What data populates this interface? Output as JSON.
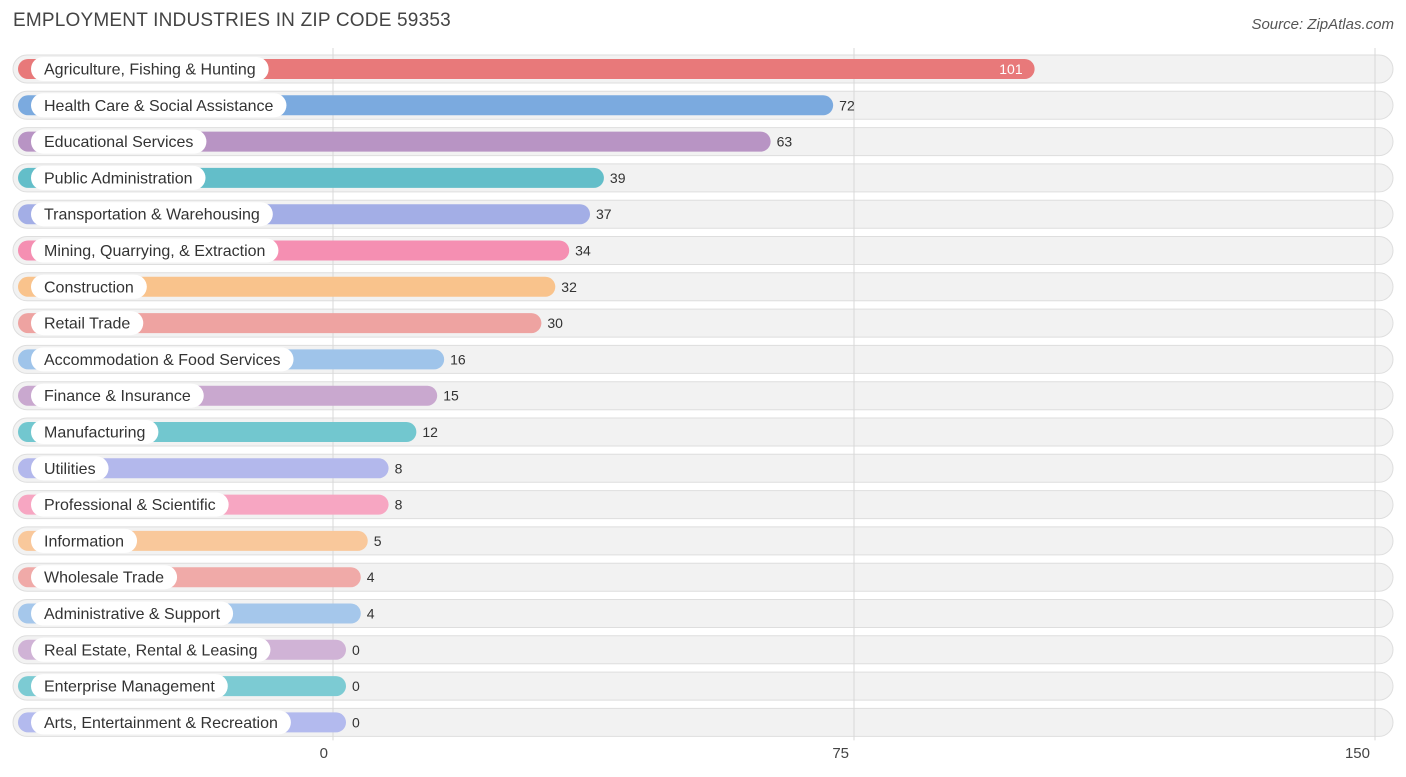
{
  "chart_data": {
    "type": "bar",
    "orientation": "horizontal",
    "title": "EMPLOYMENT INDUSTRIES IN ZIP CODE 59353",
    "source": "Source: ZipAtlas.com",
    "xlim": [
      0,
      150
    ],
    "ticks": [
      0,
      75,
      150
    ],
    "tick_labels": [
      "0",
      "75",
      "150"
    ],
    "grid": true,
    "categories": [
      "Agriculture, Fishing & Hunting",
      "Health Care & Social Assistance",
      "Educational Services",
      "Public Administration",
      "Transportation & Warehousing",
      "Mining, Quarrying, & Extraction",
      "Construction",
      "Retail Trade",
      "Accommodation & Food Services",
      "Finance & Insurance",
      "Manufacturing",
      "Utilities",
      "Professional & Scientific",
      "Information",
      "Wholesale Trade",
      "Administrative & Support",
      "Real Estate, Rental & Leasing",
      "Enterprise Management",
      "Arts, Entertainment & Recreation"
    ],
    "values": [
      101,
      72,
      63,
      39,
      37,
      34,
      32,
      30,
      16,
      15,
      12,
      8,
      8,
      5,
      4,
      4,
      0,
      0,
      0
    ],
    "value_labels": [
      "101",
      "72",
      "63",
      "39",
      "37",
      "34",
      "32",
      "30",
      "16",
      "15",
      "12",
      "8",
      "8",
      "5",
      "4",
      "4",
      "0",
      "0",
      "0"
    ],
    "colors": [
      "#e8797a",
      "#7baadf",
      "#b894c4",
      "#63bec9",
      "#a3aee6",
      "#f58fb2",
      "#f9c38c",
      "#eea3a1",
      "#9fc4ea",
      "#c9a8cf",
      "#72c7cf",
      "#b3b8ec",
      "#f7a6c2",
      "#f9c89b",
      "#f0aaa8",
      "#a5c7eb",
      "#d0b3d6",
      "#7ccbd3",
      "#b3baee"
    ]
  }
}
